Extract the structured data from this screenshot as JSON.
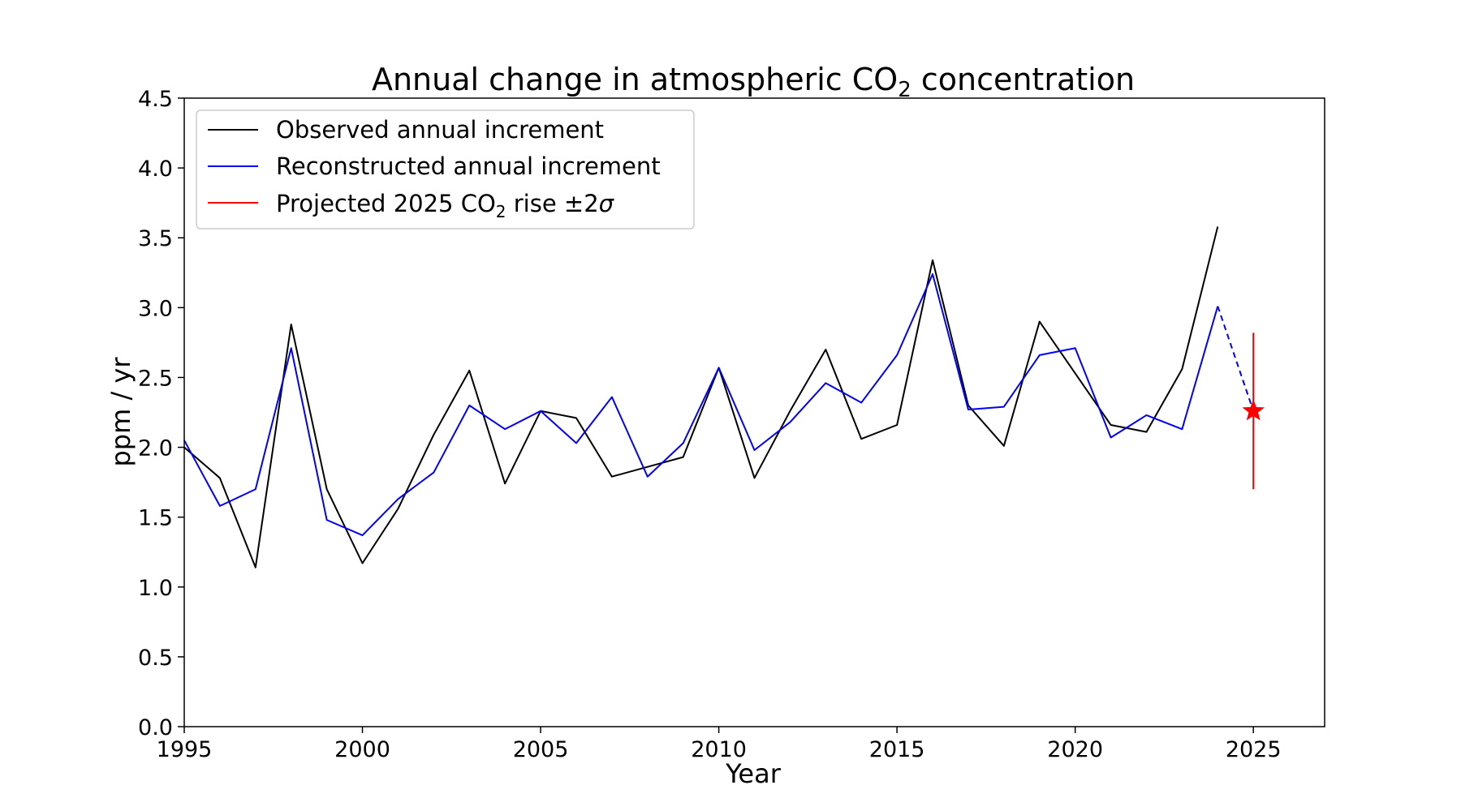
{
  "chart_data": {
    "type": "line",
    "title": {
      "main": "Annual change in atmospheric CO",
      "sub": "2",
      "tail": " concentration"
    },
    "xlabel": "Year",
    "ylabel": "ppm / yr",
    "xlim": [
      1995,
      2027
    ],
    "ylim": [
      0,
      4.5
    ],
    "xticks": [
      1995,
      2000,
      2005,
      2010,
      2015,
      2020,
      2025
    ],
    "yticks": [
      0.0,
      0.5,
      1.0,
      1.5,
      2.0,
      2.5,
      3.0,
      3.5,
      4.0,
      4.5
    ],
    "ytick_labels": [
      "0.0",
      "0.5",
      "1.0",
      "1.5",
      "2.0",
      "2.5",
      "3.0",
      "3.5",
      "4.0",
      "4.5"
    ],
    "grid": false,
    "legend_position": "top-left",
    "series": [
      {
        "name": "Observed annual increment",
        "color": "#000000",
        "x": [
          1995,
          1996,
          1997,
          1998,
          1999,
          2000,
          2001,
          2002,
          2003,
          2004,
          2005,
          2006,
          2007,
          2008,
          2009,
          2010,
          2011,
          2012,
          2013,
          2014,
          2015,
          2016,
          2017,
          2018,
          2019,
          2020,
          2021,
          2022,
          2023,
          2024
        ],
        "y": [
          2.0,
          1.78,
          1.14,
          2.88,
          1.7,
          1.17,
          1.56,
          2.09,
          2.55,
          1.74,
          2.26,
          2.21,
          1.79,
          1.86,
          1.93,
          2.57,
          1.78,
          2.26,
          2.7,
          2.06,
          2.16,
          3.34,
          2.3,
          2.01,
          2.9,
          2.53,
          2.16,
          2.11,
          2.56,
          3.58
        ]
      },
      {
        "name": "Reconstructed annual increment",
        "color": "#0000ff",
        "x": [
          1995,
          1996,
          1997,
          1998,
          1999,
          2000,
          2001,
          2002,
          2003,
          2004,
          2005,
          2006,
          2007,
          2008,
          2009,
          2010,
          2011,
          2012,
          2013,
          2014,
          2015,
          2016,
          2017,
          2018,
          2019,
          2020,
          2021,
          2022,
          2023,
          2024
        ],
        "y": [
          2.05,
          1.58,
          1.7,
          2.71,
          1.48,
          1.37,
          1.63,
          1.82,
          2.3,
          2.13,
          2.26,
          2.03,
          2.36,
          1.79,
          2.03,
          2.57,
          1.98,
          2.18,
          2.46,
          2.32,
          2.66,
          3.24,
          2.27,
          2.29,
          2.66,
          2.71,
          2.07,
          2.23,
          2.13,
          3.01
        ],
        "dashed_extension": {
          "x": [
            2024,
            2025
          ],
          "y": [
            3.01,
            2.26
          ]
        }
      },
      {
        "name": "Projected 2025 CO2 rise ±2σ",
        "legend_label": {
          "main": "Projected 2025 CO",
          "sub": "2",
          "tail": " rise ±2",
          "sigma": "σ"
        },
        "color": "#ff0000",
        "x": 2025,
        "y": 2.26,
        "lower": 1.7,
        "upper": 2.82,
        "marker": "star"
      }
    ]
  }
}
